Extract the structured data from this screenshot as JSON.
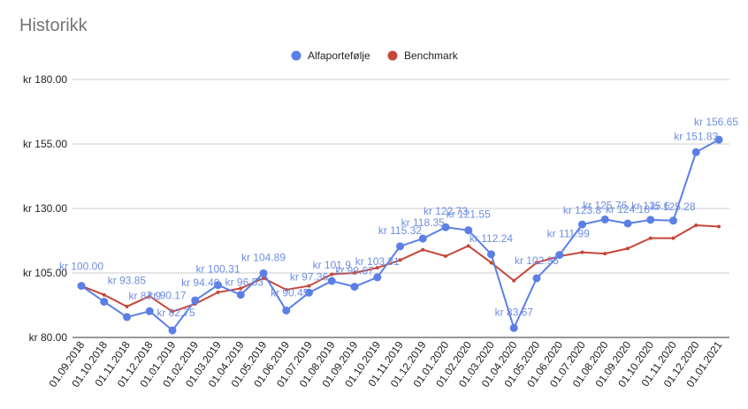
{
  "chart_data": {
    "type": "line",
    "title": "Historikk",
    "xlabel": "",
    "ylabel": "",
    "ylim": [
      80,
      180
    ],
    "yticks": [
      "kr  80.00",
      "kr  105.00",
      "kr  130.00",
      "kr  155.00",
      "kr  180.00"
    ],
    "ytick_values": [
      80,
      105,
      130,
      155,
      180
    ],
    "grid": true,
    "legend_position": "top",
    "categories": [
      "01.09.2018",
      "01.10.2018",
      "01.11.2018",
      "01.12.2018",
      "01.01.2019",
      "01.02.2019",
      "01.03.2019",
      "01.04.2019",
      "01.05.2019",
      "01.06.2019",
      "01.07.2019",
      "01.08.2019",
      "01.09.2019",
      "01.10.2019",
      "01.11.2019",
      "01.12.2019",
      "01.01.2020",
      "01.02.2020",
      "01.03.2020",
      "01.04.2020",
      "01.05.2020",
      "01.06.2020",
      "01.07.2020",
      "01.08.2020",
      "01.09.2020",
      "01.10.2020",
      "01.11.2020",
      "01.12.2020",
      "01.01.2021"
    ],
    "series": [
      {
        "name": "Alfaportefølje",
        "color": "#5b7fe6",
        "values": [
          100.0,
          93.85,
          87.9,
          90.17,
          82.75,
          94.4,
          100.31,
          96.53,
          104.89,
          90.45,
          97.36,
          101.9,
          99.67,
          103.31,
          115.32,
          118.35,
          122.73,
          121.55,
          112.24,
          83.67,
          102.95,
          111.99,
          123.8,
          125.76,
          124.18,
          125.6,
          125.28,
          151.83,
          156.65
        ],
        "labels": [
          "kr  100.00",
          "kr  93.85",
          "kr  87.9",
          "kr  90.17",
          "kr  82.75",
          "kr  94.40",
          "kr  100.31",
          "kr  96.53",
          "kr  104.89",
          "kr  90.45",
          "kr  97.36",
          "kr  101.9",
          "kr  99.67",
          "kr  103.31",
          "kr  115.32",
          "kr  118.35",
          "kr  122.73",
          "kr  121.55",
          "kr  112.24",
          "kr  83.67",
          "kr  102.95",
          "kr  111.99",
          "kr  123.8",
          "kr  125.76",
          "kr  124.18",
          "kr  125.6",
          "kr  125.28",
          "kr  151.83",
          "kr  156.65"
        ]
      },
      {
        "name": "Benchmark",
        "color": "#c5473a",
        "values": [
          100.0,
          96.5,
          92.0,
          96.0,
          90.0,
          93.0,
          97.5,
          99.0,
          103.0,
          98.5,
          100.0,
          104.5,
          105.0,
          107.0,
          110.0,
          114.0,
          111.5,
          115.5,
          109.0,
          102.0,
          109.0,
          111.5,
          113.0,
          112.5,
          114.5,
          118.5,
          118.5,
          123.5,
          123.0
        ]
      }
    ]
  }
}
